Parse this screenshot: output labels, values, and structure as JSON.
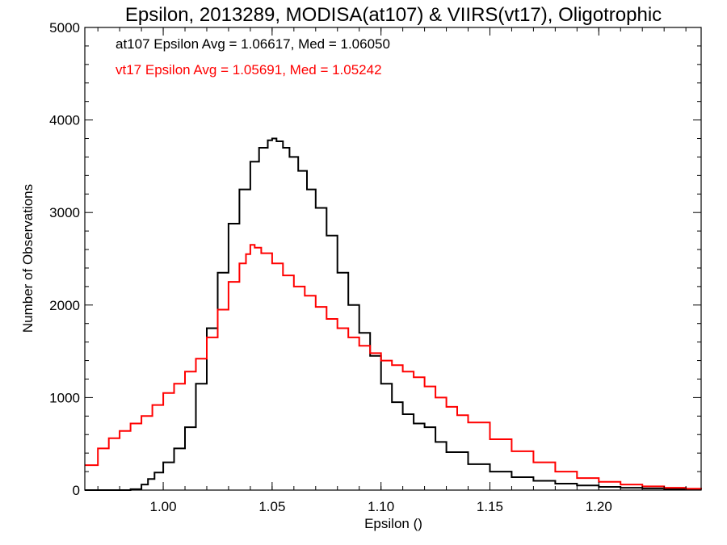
{
  "chart_data": {
    "type": "line",
    "title": "Epsilon, 2013289, MODISA(at107) & VIIRS(vt17), Oligotrophic",
    "xlabel": "Epsilon ()",
    "ylabel": "Number of Observations",
    "xlim": [
      0.964,
      1.247
    ],
    "ylim": [
      0,
      5000
    ],
    "x_ticks": [
      1.0,
      1.05,
      1.1,
      1.15,
      1.2
    ],
    "x_tick_labels": [
      "1.00",
      "1.05",
      "1.10",
      "1.15",
      "1.20"
    ],
    "y_ticks": [
      0,
      1000,
      2000,
      3000,
      4000,
      5000
    ],
    "y_tick_labels": [
      "0",
      "1000",
      "2000",
      "3000",
      "4000",
      "5000"
    ],
    "grid": false,
    "annotations": [
      {
        "text": "at107 Epsilon Avg = 1.06617, Med = 1.06050",
        "color": "#000000"
      },
      {
        "text": "vt17 Epsilon Avg = 1.05691, Med = 1.05242",
        "color": "#ff0000"
      }
    ],
    "series": [
      {
        "color": "#000000",
        "x": [
          0.964,
          0.97,
          0.98,
          0.985,
          0.99,
          0.993,
          0.996,
          1.0,
          1.005,
          1.01,
          1.015,
          1.02,
          1.025,
          1.03,
          1.035,
          1.04,
          1.044,
          1.048,
          1.05,
          1.052,
          1.055,
          1.058,
          1.062,
          1.066,
          1.07,
          1.075,
          1.08,
          1.085,
          1.09,
          1.095,
          1.1,
          1.105,
          1.11,
          1.115,
          1.12,
          1.125,
          1.13,
          1.14,
          1.15,
          1.16,
          1.17,
          1.18,
          1.19,
          1.2,
          1.21,
          1.22,
          1.23,
          1.24,
          1.247
        ],
        "y": [
          0,
          0,
          0,
          10,
          60,
          120,
          190,
          300,
          450,
          680,
          1150,
          1750,
          2350,
          2880,
          3250,
          3550,
          3700,
          3780,
          3800,
          3770,
          3700,
          3600,
          3450,
          3250,
          3050,
          2750,
          2350,
          2000,
          1700,
          1450,
          1150,
          950,
          820,
          720,
          680,
          520,
          410,
          280,
          200,
          140,
          100,
          70,
          50,
          35,
          25,
          18,
          12,
          8,
          5
        ]
      },
      {
        "color": "#ff0000",
        "x": [
          0.964,
          0.97,
          0.975,
          0.98,
          0.985,
          0.99,
          0.995,
          1.0,
          1.005,
          1.01,
          1.015,
          1.02,
          1.025,
          1.03,
          1.035,
          1.038,
          1.04,
          1.042,
          1.045,
          1.05,
          1.055,
          1.06,
          1.065,
          1.07,
          1.075,
          1.08,
          1.085,
          1.09,
          1.095,
          1.1,
          1.105,
          1.11,
          1.115,
          1.12,
          1.125,
          1.13,
          1.135,
          1.14,
          1.15,
          1.16,
          1.17,
          1.18,
          1.19,
          1.2,
          1.21,
          1.22,
          1.23,
          1.24,
          1.247
        ],
        "y": [
          270,
          450,
          560,
          640,
          720,
          800,
          920,
          1050,
          1150,
          1280,
          1420,
          1650,
          1950,
          2250,
          2450,
          2550,
          2650,
          2620,
          2560,
          2450,
          2320,
          2200,
          2100,
          1980,
          1850,
          1750,
          1650,
          1560,
          1480,
          1400,
          1350,
          1280,
          1220,
          1120,
          1000,
          900,
          810,
          730,
          550,
          420,
          300,
          200,
          130,
          90,
          60,
          40,
          25,
          15,
          8
        ]
      }
    ]
  }
}
